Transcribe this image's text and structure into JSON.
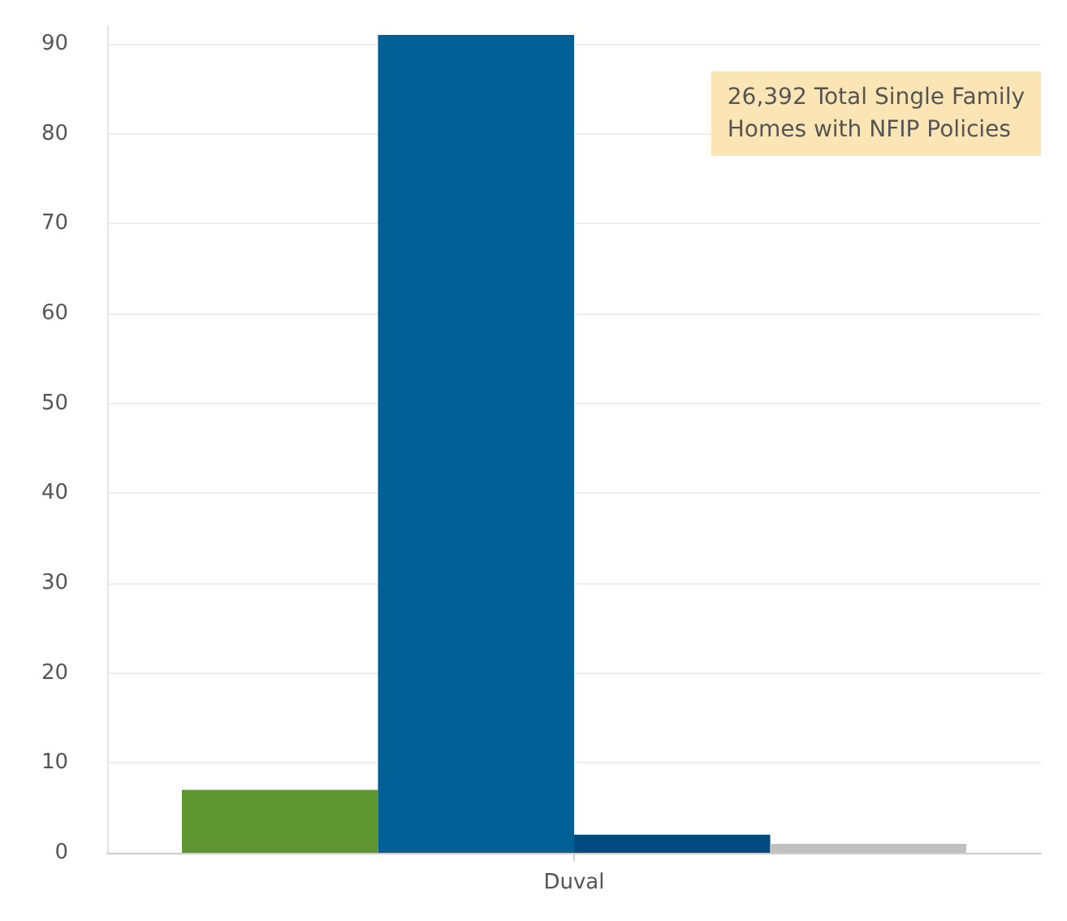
{
  "chart_data": {
    "type": "bar",
    "categories": [
      "Duval"
    ],
    "series": [
      {
        "color": "#5f9632",
        "values": [
          7
        ]
      },
      {
        "color": "#006096",
        "values": [
          91
        ]
      },
      {
        "color": "#004a80",
        "values": [
          2
        ]
      },
      {
        "color": "#c0c0c0",
        "values": [
          1
        ]
      }
    ],
    "ylim": [
      0,
      92
    ],
    "yticks": [
      0,
      10,
      20,
      30,
      40,
      50,
      60,
      70,
      80,
      90
    ],
    "grid": "y",
    "annotations": [
      "26,392 Total Single Family Homes with NFIP Policies"
    ]
  }
}
